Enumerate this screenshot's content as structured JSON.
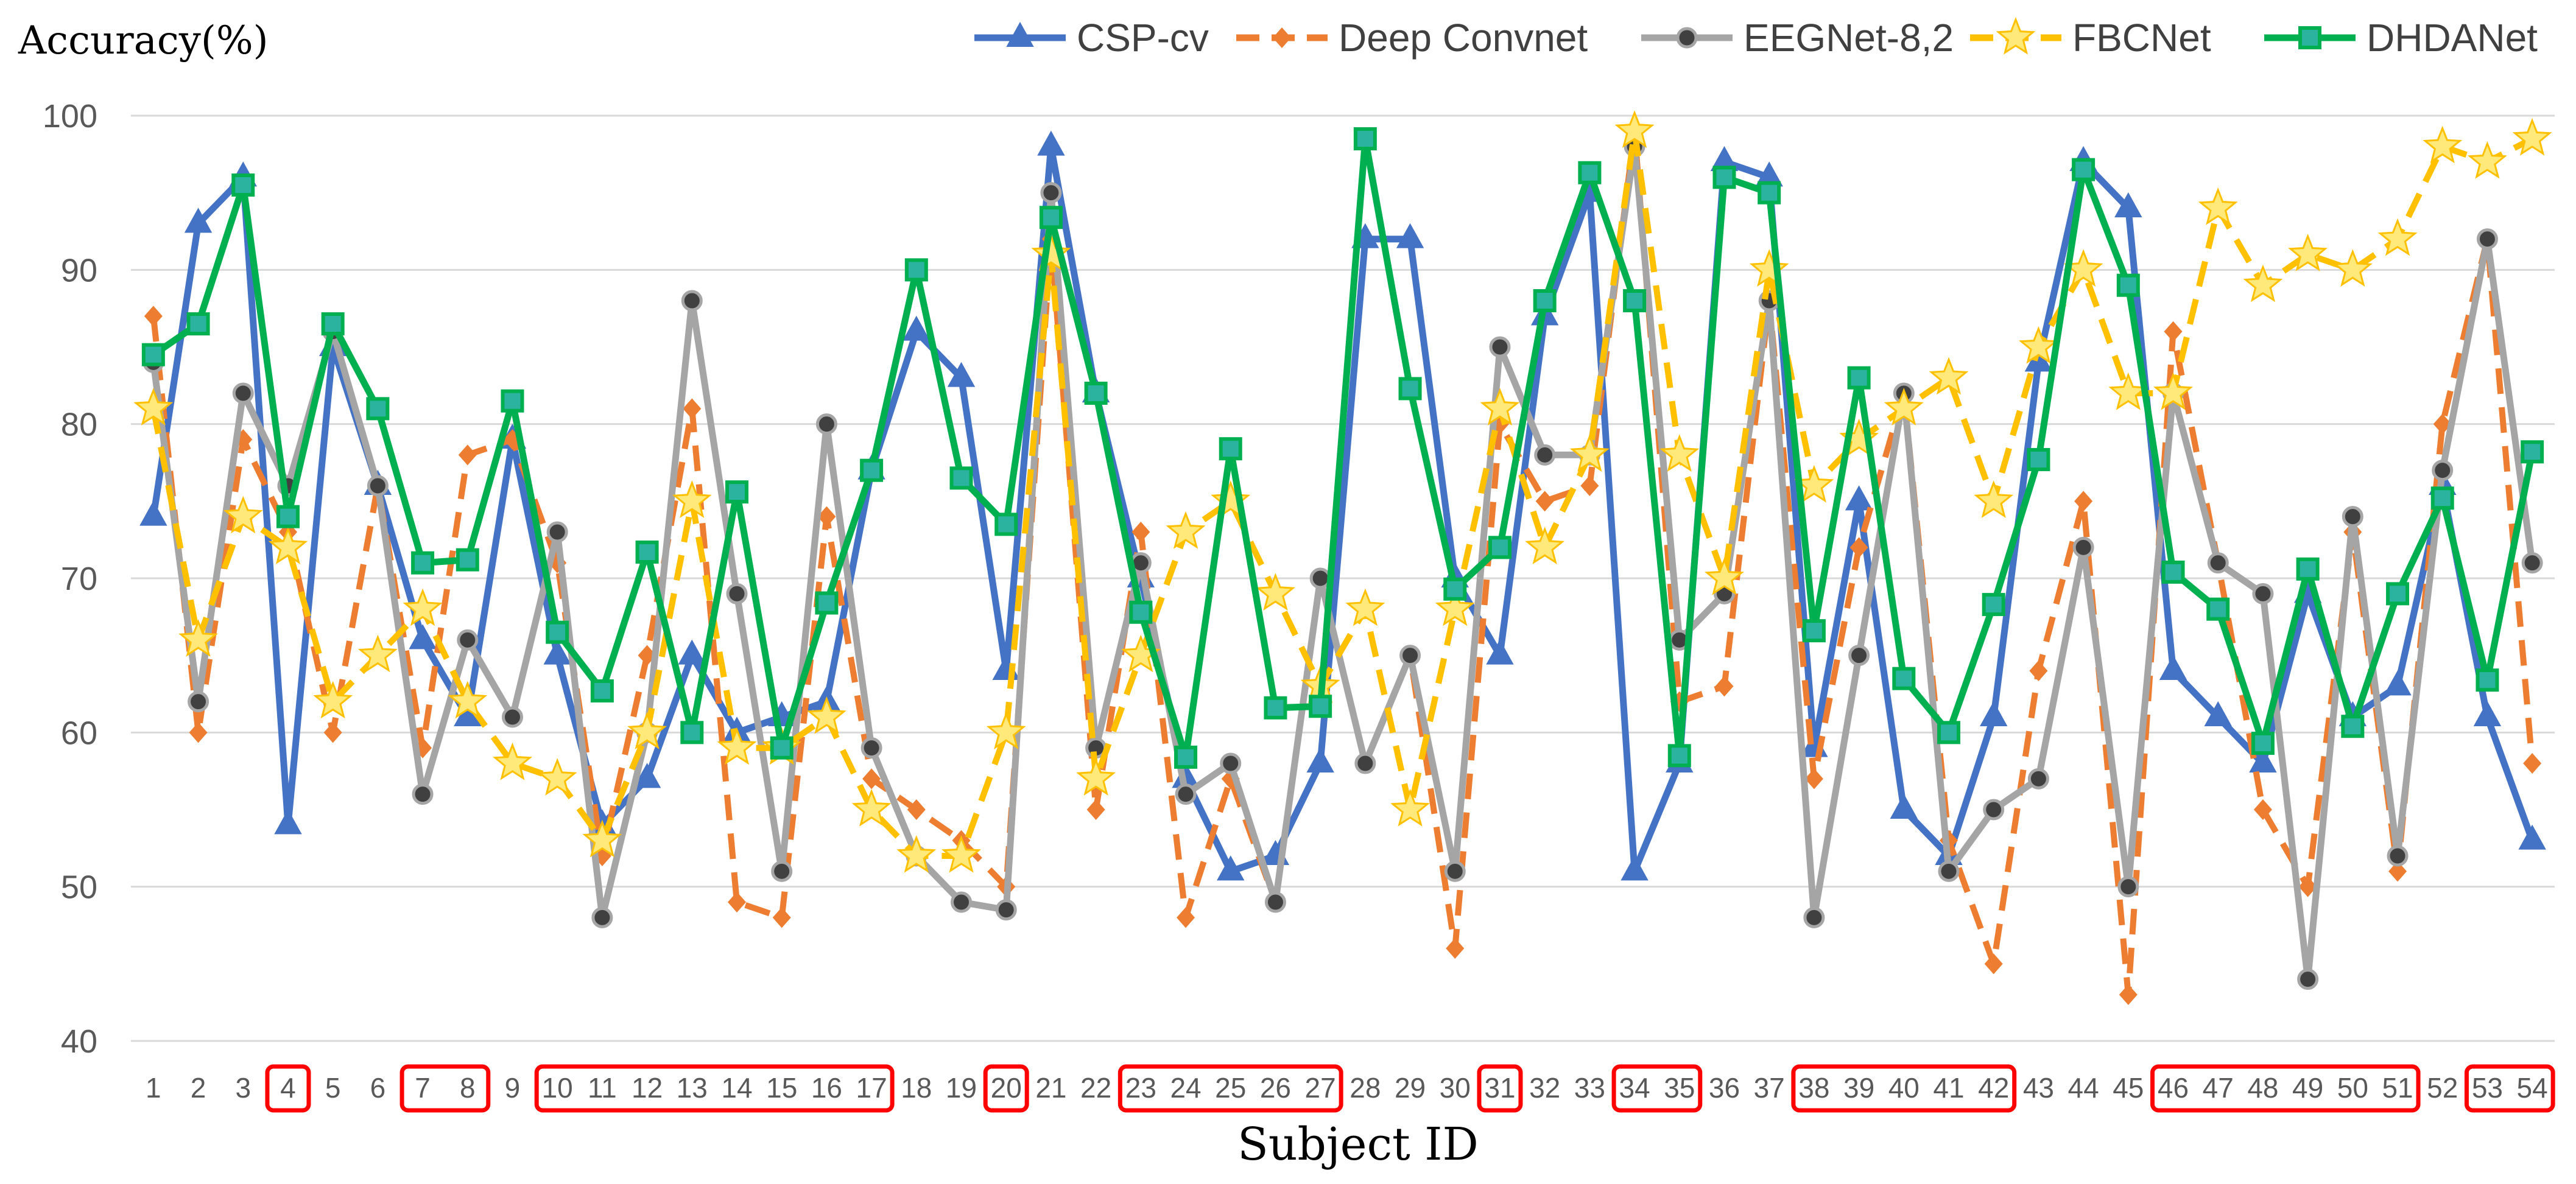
{
  "chart_data": {
    "type": "line",
    "title": "",
    "ylabel": "Accuracy(%)",
    "xlabel": "Subject ID",
    "ylim": [
      40,
      100
    ],
    "yticks": [
      40,
      50,
      60,
      70,
      80,
      90,
      100
    ],
    "grid": true,
    "legend_position": "top",
    "categories": [
      "1",
      "2",
      "3",
      "4",
      "5",
      "6",
      "7",
      "8",
      "9",
      "10",
      "11",
      "12",
      "13",
      "14",
      "15",
      "16",
      "17",
      "18",
      "19",
      "20",
      "21",
      "22",
      "23",
      "24",
      "25",
      "26",
      "27",
      "28",
      "29",
      "30",
      "31",
      "32",
      "33",
      "34",
      "35",
      "36",
      "37",
      "38",
      "39",
      "40",
      "41",
      "42",
      "43",
      "44",
      "45",
      "46",
      "47",
      "48",
      "49",
      "50",
      "51",
      "52",
      "53",
      "54"
    ],
    "highlighted_groups": [
      {
        "from": "4",
        "to": "4"
      },
      {
        "from": "7",
        "to": "8"
      },
      {
        "from": "10",
        "to": "17"
      },
      {
        "from": "20",
        "to": "20"
      },
      {
        "from": "23",
        "to": "27"
      },
      {
        "from": "31",
        "to": "31"
      },
      {
        "from": "34",
        "to": "35"
      },
      {
        "from": "38",
        "to": "42"
      },
      {
        "from": "46",
        "to": "51"
      },
      {
        "from": "53",
        "to": "54"
      }
    ],
    "series": [
      {
        "name": "CSP-cv",
        "color": "#4472C4",
        "marker": "triangle",
        "line_style": "solid",
        "values": [
          74,
          93,
          96,
          54,
          85,
          76,
          66,
          61,
          79,
          65,
          54,
          57,
          65,
          60,
          61,
          62,
          77,
          86,
          83,
          64,
          98,
          82,
          70,
          57,
          51,
          52,
          58,
          92,
          92,
          70,
          65,
          87,
          95,
          51,
          58,
          97,
          96,
          59,
          75,
          55,
          52,
          61,
          84,
          97,
          94,
          64,
          61,
          58,
          69,
          61,
          63,
          76,
          61,
          53
        ]
      },
      {
        "name": "Deep Convnet",
        "color": "#ED7D31",
        "marker": "diamond",
        "line_style": "dashed",
        "values": [
          87,
          60,
          79,
          73,
          60,
          76,
          59,
          78,
          79,
          71,
          52,
          65,
          81,
          49,
          48,
          74,
          57,
          55,
          53,
          50,
          92,
          55,
          73,
          48,
          57,
          49,
          70,
          58,
          65,
          46,
          80,
          75,
          76,
          99,
          62,
          63,
          88,
          57,
          72,
          82,
          53,
          45,
          64,
          75,
          43,
          86,
          71,
          55,
          50,
          73,
          51,
          80,
          92,
          58
        ]
      },
      {
        "name": "EEGNet-8,2",
        "color": "#A5A5A5",
        "marker": "circle",
        "line_style": "solid",
        "values": [
          84,
          62,
          82,
          76,
          86,
          76,
          56,
          66,
          61,
          73,
          48,
          60,
          88,
          69,
          51,
          80,
          59,
          52,
          49,
          48.5,
          95,
          59,
          71,
          56,
          58,
          49,
          70,
          58,
          65,
          51,
          85,
          78,
          78,
          98,
          66,
          69,
          88,
          48,
          65,
          82,
          51,
          55,
          57,
          72,
          50,
          82,
          71,
          69,
          44,
          74,
          52,
          77,
          92,
          71
        ]
      },
      {
        "name": "FBCNet",
        "color": "#FFC000",
        "marker": "star",
        "line_style": "dashed",
        "values": [
          81,
          66,
          74,
          72,
          62,
          65,
          68,
          62,
          58,
          57,
          53,
          60,
          75,
          59,
          59,
          61,
          55,
          52,
          52,
          60,
          91,
          57,
          65,
          73,
          75,
          69,
          63,
          68,
          55,
          68,
          81,
          72,
          78,
          99,
          78,
          70,
          90,
          76,
          79,
          81,
          83,
          75,
          85,
          90,
          82,
          82,
          94,
          89,
          91,
          90,
          92,
          98,
          97,
          98.5
        ]
      },
      {
        "name": "DHDANet",
        "color": "#00B050",
        "marker": "square",
        "line_style": "solid",
        "values": [
          84.5,
          86.5,
          95.5,
          74,
          86.5,
          81,
          71,
          71.2,
          81.5,
          66.5,
          62.7,
          71.7,
          60,
          75.6,
          59,
          68.4,
          77,
          90,
          76.5,
          73.5,
          93.4,
          82,
          67.8,
          58.4,
          78.4,
          61.6,
          61.7,
          98.5,
          82.3,
          69.3,
          72,
          88,
          96.3,
          88,
          58.5,
          96,
          95,
          66.6,
          83,
          63.5,
          60,
          68.3,
          77.7,
          96.5,
          89,
          70.4,
          68,
          59.3,
          70.6,
          60.4,
          69,
          75.2,
          63.4,
          78.2
        ]
      }
    ]
  }
}
